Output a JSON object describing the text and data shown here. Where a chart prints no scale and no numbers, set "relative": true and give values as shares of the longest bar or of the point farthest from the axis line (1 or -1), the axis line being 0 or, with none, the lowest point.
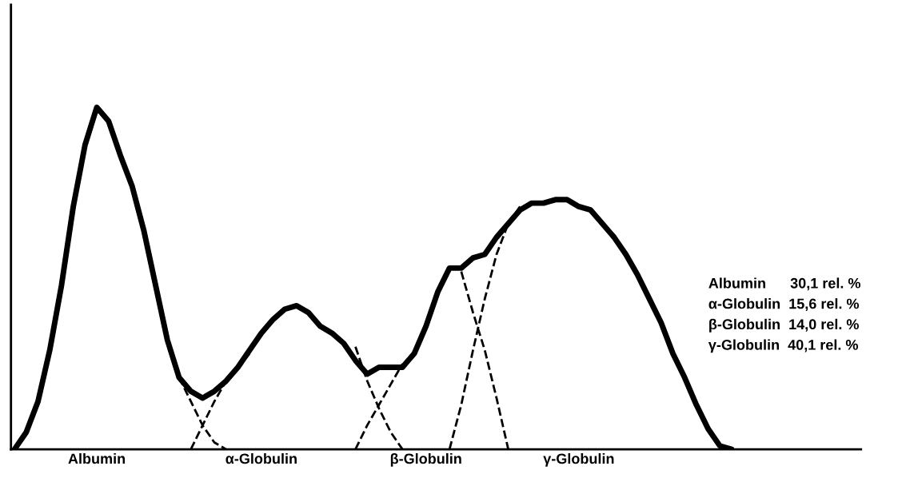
{
  "chart_data": {
    "type": "line",
    "relative": true,
    "categories": [
      null,
      null,
      null,
      null,
      null,
      null,
      null,
      "Albumin",
      null,
      null,
      null,
      null,
      null,
      null,
      null,
      null,
      null,
      null,
      null,
      null,
      null,
      "α-Globulin",
      null,
      null,
      null,
      null,
      null,
      null,
      null,
      null,
      null,
      null,
      null,
      null,
      null,
      "β-Globulin",
      null,
      null,
      null,
      null,
      null,
      null,
      null,
      null,
      null,
      null,
      null,
      null,
      "γ-Globulin",
      null,
      null,
      null,
      null,
      null,
      null,
      null,
      null,
      null,
      null,
      null,
      null,
      null,
      null,
      null,
      null,
      null,
      null,
      null,
      null,
      null,
      null
    ],
    "series": [
      {
        "color": "#000000",
        "line_style": "solid",
        "values": [
          0,
          0.05,
          0.14,
          0.29,
          0.48,
          0.71,
          0.89,
          1,
          0.96,
          0.86,
          0.77,
          0.64,
          0.48,
          0.32,
          0.21,
          0.17,
          0.15,
          0.17,
          0.2,
          0.24,
          0.29,
          0.34,
          0.38,
          0.41,
          0.42,
          0.4,
          0.36,
          0.34,
          0.31,
          0.26,
          0.22,
          0.24,
          0.24,
          0.24,
          0.28,
          0.36,
          0.46,
          0.53,
          0.53,
          0.56,
          0.57,
          0.62,
          0.66,
          0.7,
          0.72,
          0.72,
          0.73,
          0.73,
          0.71,
          0.7,
          0.66,
          0.62,
          0.57,
          0.51,
          0.44,
          0.37,
          0.28,
          0.21,
          0.13,
          0.06,
          0.01,
          0,
          null,
          null,
          null,
          null,
          null,
          null,
          null,
          null,
          null
        ]
      },
      {
        "color": "#000000",
        "line_style": "dashed",
        "values": [
          null,
          null,
          null,
          null,
          null,
          null,
          null,
          null,
          null,
          null,
          null,
          null,
          null,
          null,
          0.21,
          0.14,
          0.07,
          0.02,
          0,
          null,
          null,
          null,
          null,
          null,
          null,
          null,
          null,
          null,
          null,
          null,
          null,
          null,
          null,
          null,
          null,
          null,
          null,
          null,
          null,
          null,
          null,
          null,
          null,
          null,
          null,
          null,
          null,
          null,
          null,
          null,
          null,
          null,
          null,
          null,
          null,
          null,
          null,
          null,
          null,
          null,
          null,
          null,
          null,
          null,
          null,
          null,
          null,
          null,
          null,
          null,
          null
        ]
      },
      {
        "color": "#000000",
        "line_style": "dashed",
        "values": [
          null,
          null,
          null,
          null,
          null,
          null,
          null,
          null,
          null,
          null,
          null,
          null,
          null,
          null,
          null,
          0,
          0.07,
          0.14,
          0.2,
          0.24,
          0.28,
          null,
          null,
          null,
          null,
          null,
          null,
          null,
          null,
          null,
          null,
          null,
          null,
          null,
          null,
          null,
          null,
          null,
          null,
          null,
          null,
          null,
          null,
          null,
          null,
          null,
          null,
          null,
          null,
          null,
          null,
          null,
          null,
          null,
          null,
          null,
          null,
          null,
          null,
          null,
          null,
          null,
          null,
          null,
          null,
          null,
          null,
          null,
          null,
          null,
          null
        ]
      },
      {
        "color": "#000000",
        "line_style": "dashed",
        "values": [
          null,
          null,
          null,
          null,
          null,
          null,
          null,
          null,
          null,
          null,
          null,
          null,
          null,
          null,
          null,
          null,
          null,
          null,
          null,
          null,
          null,
          null,
          null,
          null,
          null,
          null,
          null,
          null,
          null,
          0.3,
          0.2,
          0.12,
          0.05,
          0,
          null,
          null,
          null,
          null,
          null,
          null,
          null,
          null,
          null,
          null,
          null,
          null,
          null,
          null,
          null,
          null,
          null,
          null,
          null,
          null,
          null,
          null,
          null,
          null,
          null,
          null,
          null,
          null,
          null,
          null,
          null,
          null,
          null,
          null,
          null,
          null,
          null
        ]
      },
      {
        "color": "#000000",
        "line_style": "dashed",
        "values": [
          null,
          null,
          null,
          null,
          null,
          null,
          null,
          null,
          null,
          null,
          null,
          null,
          null,
          null,
          null,
          null,
          null,
          null,
          null,
          null,
          null,
          null,
          null,
          null,
          null,
          null,
          null,
          null,
          null,
          0,
          0.07,
          0.13,
          0.19,
          0.25,
          null,
          null,
          null,
          null,
          null,
          null,
          null,
          null,
          null,
          null,
          null,
          null,
          null,
          null,
          null,
          null,
          null,
          null,
          null,
          null,
          null,
          null,
          null,
          null,
          null,
          null,
          null,
          null,
          null,
          null,
          null,
          null,
          null,
          null,
          null,
          null,
          null
        ]
      },
      {
        "color": "#000000",
        "line_style": "dashed",
        "values": [
          null,
          null,
          null,
          null,
          null,
          null,
          null,
          null,
          null,
          null,
          null,
          null,
          null,
          null,
          null,
          null,
          null,
          null,
          null,
          null,
          null,
          null,
          null,
          null,
          null,
          null,
          null,
          null,
          null,
          null,
          null,
          null,
          null,
          null,
          null,
          null,
          null,
          null,
          0.52,
          0.4,
          0.29,
          0.15,
          0,
          null,
          null,
          null,
          null,
          null,
          null,
          null,
          null,
          null,
          null,
          null,
          null,
          null,
          null,
          null,
          null,
          null,
          null,
          null,
          null,
          null,
          null,
          null,
          null,
          null,
          null,
          null,
          null
        ]
      },
      {
        "color": "#000000",
        "line_style": "dashed",
        "values": [
          null,
          null,
          null,
          null,
          null,
          null,
          null,
          null,
          null,
          null,
          null,
          null,
          null,
          null,
          null,
          null,
          null,
          null,
          null,
          null,
          null,
          null,
          null,
          null,
          null,
          null,
          null,
          null,
          null,
          null,
          null,
          null,
          null,
          null,
          null,
          null,
          null,
          0,
          0.13,
          0.29,
          0.44,
          0.57,
          0.66,
          0.71,
          null,
          null,
          null,
          null,
          null,
          null,
          null,
          null,
          null,
          null,
          null,
          null,
          null,
          null,
          null,
          null,
          null,
          null,
          null,
          null,
          null,
          null,
          null,
          null,
          null,
          null,
          null
        ]
      }
    ],
    "annotations": [
      "Albumin      30,1 rel. %",
      "α-Globulin  15,6 rel. %",
      "β-Globulin  14,0 rel. %",
      "γ-Globulin  40,1 rel. %"
    ],
    "grid": false,
    "legend": false
  }
}
